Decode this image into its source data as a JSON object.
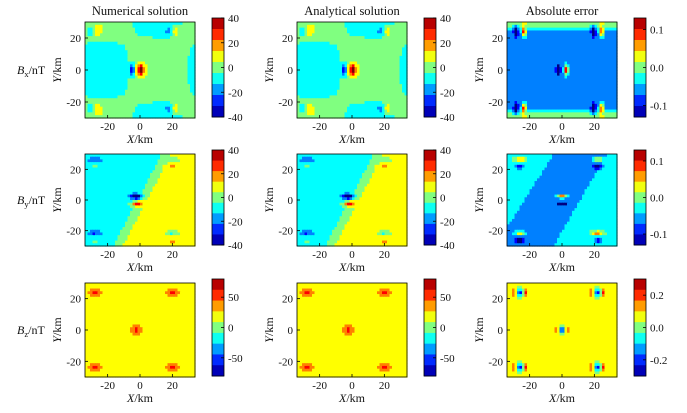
{
  "chart_data": [
    {
      "type": "contour",
      "row_label": "Bx/nT",
      "title": "Numerical solution",
      "xlabel": "X/km",
      "ylabel": "Y/km",
      "xticks": [
        -20,
        0,
        20
      ],
      "yticks": [
        20,
        0,
        -20
      ],
      "colorbar_ticks": [
        40,
        20,
        0,
        -20,
        -40
      ],
      "colorbar_range": [
        -40,
        40
      ],
      "field": "bx"
    },
    {
      "type": "contour",
      "title": "Analytical solution",
      "xlabel": "X/km",
      "ylabel": "Y/km",
      "xticks": [
        -20,
        0,
        20
      ],
      "yticks": [
        20,
        0,
        -20
      ],
      "colorbar_ticks": [
        40,
        20,
        0,
        -20,
        -40
      ],
      "colorbar_range": [
        -40,
        40
      ],
      "field": "bx"
    },
    {
      "type": "contour",
      "title": "Absolute error",
      "xlabel": "X/km",
      "ylabel": "Y/km",
      "xticks": [
        -20,
        0,
        20
      ],
      "yticks": [
        20,
        0,
        -20
      ],
      "colorbar_ticks": [
        0.1,
        0.0,
        -0.1
      ],
      "colorbar_range": [
        -0.13,
        0.13
      ],
      "field": "err_x"
    },
    {
      "type": "contour",
      "row_label": "By/nT",
      "xlabel": "X/km",
      "ylabel": "Y/km",
      "xticks": [
        -20,
        0,
        20
      ],
      "yticks": [
        20,
        0,
        -20
      ],
      "colorbar_ticks": [
        40,
        20,
        0,
        -20,
        -40
      ],
      "colorbar_range": [
        -40,
        40
      ],
      "field": "by"
    },
    {
      "type": "contour",
      "xlabel": "X/km",
      "ylabel": "Y/km",
      "xticks": [
        -20,
        0,
        20
      ],
      "yticks": [
        20,
        0,
        -20
      ],
      "colorbar_ticks": [
        40,
        20,
        0,
        -20,
        -40
      ],
      "colorbar_range": [
        -40,
        40
      ],
      "field": "by"
    },
    {
      "type": "contour",
      "xlabel": "X/km",
      "ylabel": "Y/km",
      "xticks": [
        -20,
        0,
        20
      ],
      "yticks": [
        20,
        0,
        -20
      ],
      "colorbar_ticks": [
        0.1,
        0.0,
        -0.1
      ],
      "colorbar_range": [
        -0.13,
        0.13
      ],
      "field": "err_y"
    },
    {
      "type": "contour",
      "row_label": "Bz/nT",
      "xlabel": "X/km",
      "ylabel": "Y/km",
      "xticks": [
        -20,
        0,
        20
      ],
      "yticks": [
        20,
        0,
        -20
      ],
      "colorbar_ticks": [
        50,
        0,
        -50
      ],
      "colorbar_range": [
        -80,
        80
      ],
      "field": "bz"
    },
    {
      "type": "contour",
      "xlabel": "X/km",
      "ylabel": "Y/km",
      "xticks": [
        -20,
        0,
        20
      ],
      "yticks": [
        20,
        0,
        -20
      ],
      "colorbar_ticks": [
        50,
        0,
        -50
      ],
      "colorbar_range": [
        -80,
        80
      ],
      "field": "bz"
    },
    {
      "type": "contour",
      "xlabel": "X/km",
      "ylabel": "Y/km",
      "xticks": [
        -20,
        0,
        20
      ],
      "yticks": [
        20,
        0,
        -20
      ],
      "colorbar_ticks": [
        0.2,
        0.0,
        -0.2
      ],
      "colorbar_range": [
        -0.3,
        0.3
      ],
      "field": "err_z"
    }
  ],
  "row_labels": [
    {
      "italic": "B",
      "sub": "x",
      "unit": "/nT"
    },
    {
      "italic": "B",
      "sub": "y",
      "unit": "/nT"
    },
    {
      "italic": "B",
      "sub": "z",
      "unit": "/nT"
    }
  ],
  "axis_labels": {
    "x_italic": "X",
    "x_unit": "/km",
    "y_italic": "Y",
    "y_unit": "/km"
  },
  "domain": {
    "x": [
      -34,
      34
    ],
    "y": [
      -30,
      30
    ]
  },
  "colormap": [
    "#00007f",
    "#0000ff",
    "#0080ff",
    "#00ffff",
    "#80ff80",
    "#ffff00",
    "#ff8000",
    "#ff0000",
    "#7f0000"
  ]
}
